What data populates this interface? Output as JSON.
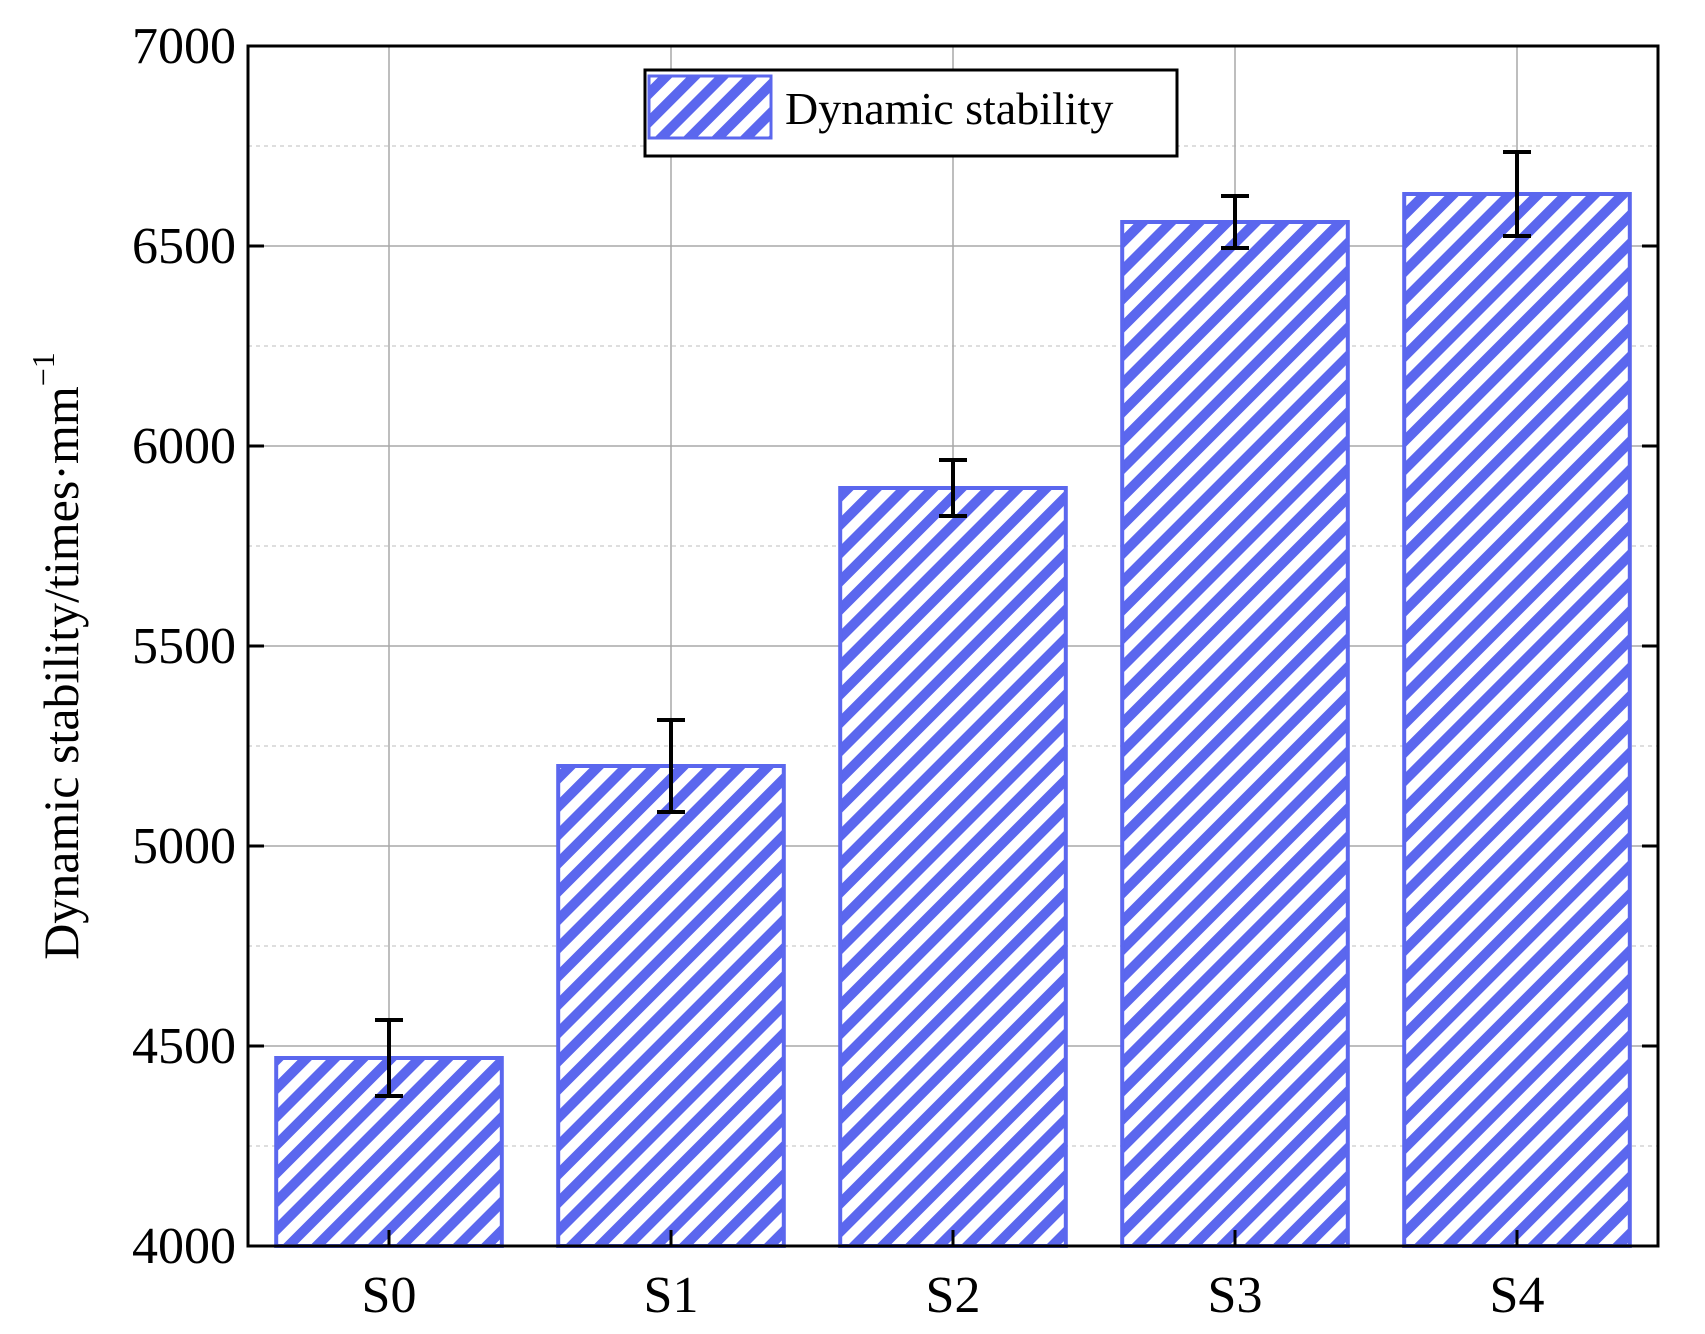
{
  "chart_data": {
    "type": "bar",
    "categories": [
      "S0",
      "S1",
      "S2",
      "S3",
      "S4"
    ],
    "series": [
      {
        "name": "Dynamic stability",
        "values": [
          4470,
          5200,
          5895,
          6560,
          6630
        ],
        "errors": [
          95,
          115,
          70,
          65,
          105
        ]
      }
    ],
    "ylabel": "Dynamic stability/times·mm",
    "ylabel_superscript": "−1",
    "ylim": [
      4000,
      7000
    ],
    "yticks": [
      4000,
      4500,
      5000,
      5500,
      6000,
      6500,
      7000
    ],
    "ytick_labels": [
      "4000",
      "4500",
      "5000",
      "5500",
      "6000",
      "6500",
      "7000"
    ],
    "grid": true,
    "legend_position": "top-center",
    "bar_color": "#5b67ee",
    "bar_pattern": "diagonal-hatch",
    "errorbar_color": "#000000"
  }
}
